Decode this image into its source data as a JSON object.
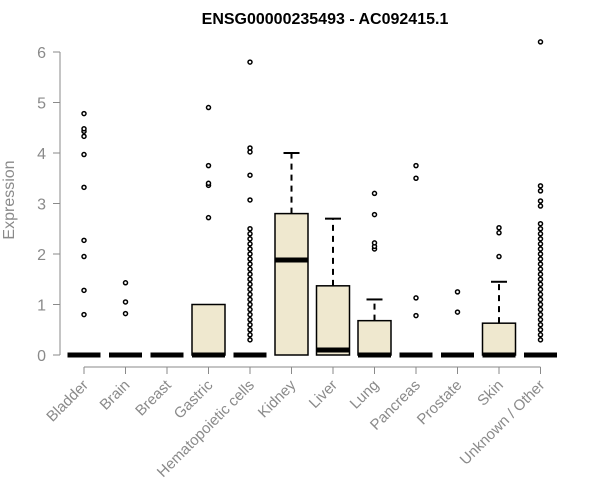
{
  "chart_data": {
    "type": "boxplot",
    "title": "ENSG00000235493 - AC092415.1",
    "xlabel": "",
    "ylabel": "Expression",
    "ylim": [
      0,
      6.2
    ],
    "yticks": [
      0,
      1,
      2,
      3,
      4,
      5,
      6
    ],
    "grid": false,
    "colors": {
      "box_fill": "#efe8cf",
      "stroke": "#000000",
      "axis": "#8a8a8a"
    },
    "categories": [
      "Bladder",
      "Brain",
      "Breast",
      "Gastric",
      "Hematopoietic cells",
      "Kidney",
      "Liver",
      "Lung",
      "Pancreas",
      "Prostate",
      "Skin",
      "Unknown / Other"
    ],
    "boxes": [
      {
        "category": "Bladder",
        "q1": 0,
        "median": 0,
        "q3": 0,
        "whisker_low": 0,
        "whisker_high": 0,
        "outliers": [
          0.8,
          1.28,
          1.95,
          2.27,
          3.32,
          3.97,
          4.33,
          4.43,
          4.48,
          4.78
        ]
      },
      {
        "category": "Brain",
        "q1": 0,
        "median": 0,
        "q3": 0,
        "whisker_low": 0,
        "whisker_high": 0,
        "outliers": [
          0.82,
          1.05,
          1.43
        ]
      },
      {
        "category": "Breast",
        "q1": 0,
        "median": 0,
        "q3": 0,
        "whisker_low": 0,
        "whisker_high": 0,
        "outliers": []
      },
      {
        "category": "Gastric",
        "q1": 0,
        "median": 0,
        "q3": 1.0,
        "whisker_low": 0,
        "whisker_high": 1.0,
        "outliers": [
          2.72,
          3.36,
          3.4,
          3.75,
          4.9
        ]
      },
      {
        "category": "Hematopoietic cells",
        "q1": 0,
        "median": 0,
        "q3": 0,
        "whisker_low": 0,
        "whisker_high": 0,
        "outliers": [
          0.3,
          0.4,
          0.5,
          0.6,
          0.7,
          0.8,
          0.9,
          1.0,
          1.1,
          1.2,
          1.3,
          1.4,
          1.5,
          1.6,
          1.7,
          1.8,
          1.9,
          2.0,
          2.1,
          2.2,
          2.3,
          2.4,
          2.5,
          3.07,
          3.56,
          4.02,
          4.1,
          5.8
        ]
      },
      {
        "category": "Kidney",
        "q1": 0,
        "median": 1.88,
        "q3": 2.8,
        "whisker_low": 0,
        "whisker_high": 4.0,
        "outliers": []
      },
      {
        "category": "Liver",
        "q1": 0,
        "median": 0.1,
        "q3": 1.37,
        "whisker_low": 0,
        "whisker_high": 2.7,
        "outliers": []
      },
      {
        "category": "Lung",
        "q1": 0,
        "median": 0,
        "q3": 0.68,
        "whisker_low": 0,
        "whisker_high": 1.1,
        "outliers": [
          2.1,
          2.15,
          2.22,
          2.78,
          3.2
        ]
      },
      {
        "category": "Pancreas",
        "q1": 0,
        "median": 0,
        "q3": 0,
        "whisker_low": 0,
        "whisker_high": 0,
        "outliers": [
          0.78,
          1.13,
          3.5,
          3.75
        ]
      },
      {
        "category": "Prostate",
        "q1": 0,
        "median": 0,
        "q3": 0,
        "whisker_low": 0,
        "whisker_high": 0,
        "outliers": [
          0.85,
          1.25
        ]
      },
      {
        "category": "Skin",
        "q1": 0,
        "median": 0,
        "q3": 0.63,
        "whisker_low": 0,
        "whisker_high": 1.45,
        "outliers": [
          1.95,
          2.42,
          2.52
        ]
      },
      {
        "category": "Unknown / Other",
        "q1": 0,
        "median": 0,
        "q3": 0,
        "whisker_low": 0,
        "whisker_high": 0,
        "outliers": [
          0.3,
          0.4,
          0.5,
          0.6,
          0.7,
          0.8,
          0.9,
          1.0,
          1.1,
          1.2,
          1.3,
          1.4,
          1.5,
          1.6,
          1.7,
          1.8,
          1.9,
          2.0,
          2.1,
          2.2,
          2.3,
          2.4,
          2.5,
          2.6,
          2.95,
          3.05,
          3.25,
          3.35,
          6.2
        ]
      }
    ]
  }
}
